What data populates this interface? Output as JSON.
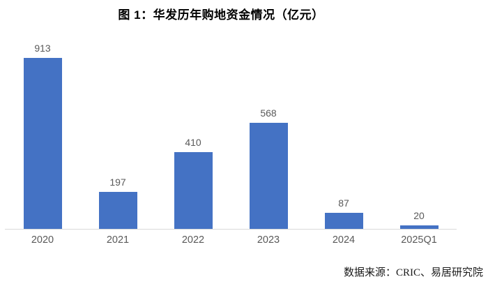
{
  "figure": {
    "title": "图 1：华发历年购地资金情况（亿元）",
    "source_text": "数据来源：CRIC、易居研究院"
  },
  "colors": {
    "bar": "#4472C4",
    "data_label": "#595959",
    "tick_label": "#595959",
    "axis_line": "#D9D9D9",
    "title": "#000000"
  },
  "chart_data": {
    "type": "bar",
    "title": "图 1：华发历年购地资金情况（亿元）",
    "categories": [
      "2020",
      "2021",
      "2022",
      "2023",
      "2024",
      "2025Q1"
    ],
    "values": [
      913,
      197,
      410,
      568,
      87,
      20
    ],
    "xlabel": "",
    "ylabel": "",
    "unit": "亿元",
    "ylim": [
      0,
      1000
    ],
    "grid": false,
    "legend": false,
    "data_labels": true,
    "source": "数据来源：CRIC、易居研究院"
  }
}
